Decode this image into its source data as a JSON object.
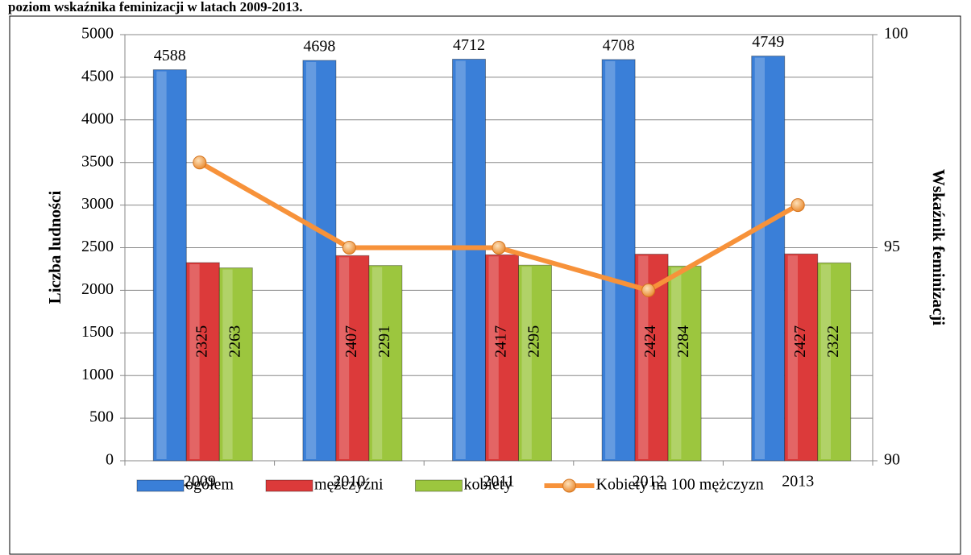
{
  "chart_data": {
    "type": "bar",
    "title": "poziom wskaźnika feminizacji w latach 2009-2013.",
    "categories": [
      "2009",
      "2010",
      "2011",
      "2012",
      "2013"
    ],
    "series": [
      {
        "name": "ogółem",
        "color": "#3a7fd8",
        "values": [
          4588,
          4698,
          4712,
          4708,
          4749
        ]
      },
      {
        "name": "mężczyźni",
        "color": "#dc3a3a",
        "values": [
          2325,
          2407,
          2417,
          2424,
          2427
        ]
      },
      {
        "name": "kobiety",
        "color": "#9cc63e",
        "values": [
          2263,
          2291,
          2295,
          2284,
          2322
        ]
      },
      {
        "name": "Kobiety na 100 mężczyzn",
        "color": "#f7923a",
        "type": "line",
        "axis": "y2",
        "values": [
          97,
          95,
          95,
          94,
          96
        ]
      }
    ],
    "ylabel": "Liczba ludności",
    "y2label": "Wskaźnik feminizacji",
    "ylim": [
      0,
      5000
    ],
    "yticks": [
      0,
      500,
      1000,
      1500,
      2000,
      2500,
      3000,
      3500,
      4000,
      4500,
      5000
    ],
    "y2lim": [
      90,
      100
    ],
    "y2ticks": [
      90,
      95,
      100
    ],
    "grid": true,
    "legend": "bottom"
  }
}
